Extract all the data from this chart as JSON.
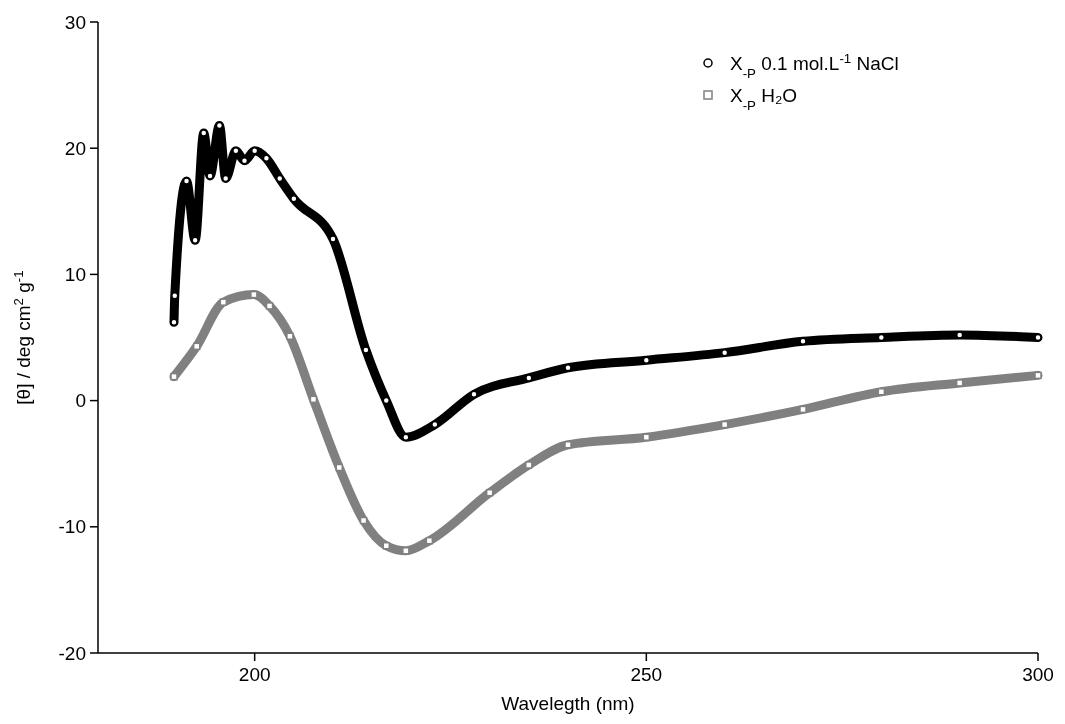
{
  "chart_data": {
    "type": "line",
    "xlabel": "Wavelegth (nm)",
    "ylabel": "[θ] / deg cm$^{2}$ g$^{-1}$",
    "xlim": [
      180,
      300
    ],
    "ylim": [
      -20,
      30
    ],
    "xticks": [
      200,
      250,
      300
    ],
    "yticks": [
      -20,
      -10,
      0,
      10,
      20,
      30
    ],
    "grid": false,
    "legend": "top right",
    "line_style": "solid",
    "series": [
      {
        "name": "X$_{-P}$ 0.1 mol.L$^{-1}$ NaCl",
        "color": "#000000",
        "marker": "circle",
        "x": [
          189.7,
          189.8,
          191.3,
          192.4,
          193.5,
          194.3,
          195.5,
          196.3,
          197.6,
          198.7,
          200,
          201.5,
          203.2,
          205,
          210,
          214.2,
          216.8,
          219.3,
          223,
          228,
          235,
          240,
          250,
          260,
          270,
          280,
          290,
          300
        ],
        "values": [
          6.2,
          8.3,
          17.4,
          12.7,
          21.2,
          17.8,
          21.8,
          17.6,
          19.8,
          19,
          19.8,
          19.2,
          17.6,
          16,
          12.8,
          4,
          0,
          -2.9,
          -1.9,
          0.5,
          1.8,
          2.6,
          3.2,
          3.8,
          4.7,
          5,
          5.2,
          5
        ]
      },
      {
        "name": "X$_{-P}$ H₂O",
        "color": "#808080",
        "marker": "square",
        "x": [
          189.7,
          192.6,
          196,
          199.9,
          201.9,
          204.5,
          207.5,
          210.8,
          213.9,
          216.8,
          219.3,
          222.3,
          230,
          235,
          240,
          250,
          260,
          270,
          280,
          290,
          300
        ],
        "values": [
          1.9,
          4.3,
          7.8,
          8.4,
          7.5,
          5.1,
          0.1,
          -5.3,
          -9.5,
          -11.5,
          -11.9,
          -11.1,
          -7.3,
          -5.1,
          -3.5,
          -2.9,
          -1.9,
          -0.7,
          0.7,
          1.4,
          2
        ]
      }
    ]
  }
}
